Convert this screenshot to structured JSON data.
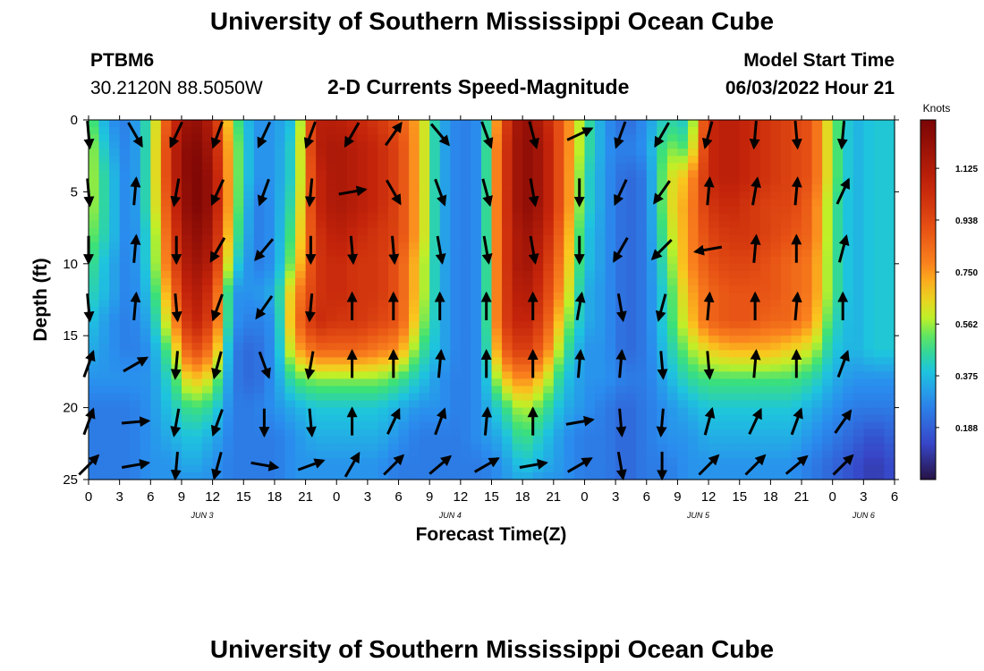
{
  "header": {
    "title": "University of Southern Mississippi Ocean Cube",
    "station": "PTBM6",
    "coords": "30.2120N  88.5050W",
    "center_title": "2-D Currents Speed-Magnitude",
    "model_label": "Model Start Time",
    "model_time": "06/03/2022 Hour 21"
  },
  "footer": {
    "title": "University of Southern Mississippi Ocean Cube"
  },
  "chart_data": {
    "type": "heatmap",
    "title": "2-D Currents Speed-Magnitude",
    "xlabel": "Forecast Time(Z)",
    "ylabel": "Depth (ft)",
    "colorbar_label": "Knots",
    "colorbar_ticks": [
      "1.125",
      "0.938",
      "0.750",
      "0.562",
      "0.375",
      "0.188"
    ],
    "colorbar_range": [
      0,
      1.3
    ],
    "x_tick_labels": [
      "0",
      "3",
      "6",
      "9",
      "12",
      "15",
      "18",
      "21",
      "0",
      "3",
      "6",
      "9",
      "12",
      "15",
      "18",
      "21",
      "0",
      "3",
      "6",
      "9",
      "12",
      "15",
      "18",
      "21",
      "0",
      "3",
      "6"
    ],
    "x_range_hours": [
      0,
      78
    ],
    "date_labels": [
      {
        "label": "JUN 3",
        "hour": 11
      },
      {
        "label": "JUN 4",
        "hour": 35
      },
      {
        "label": "JUN 5",
        "hour": 59
      },
      {
        "label": "JUN 6",
        "hour": 75
      }
    ],
    "y_ticks": [
      0,
      5,
      10,
      15,
      20,
      25
    ],
    "ylim": [
      0,
      25
    ],
    "y_inverted": true,
    "x_hours": [
      0,
      2,
      4,
      6,
      8,
      10,
      12,
      14,
      16,
      18,
      20,
      22,
      24,
      26,
      28,
      30,
      32,
      34,
      36,
      38,
      40,
      42,
      44,
      46,
      48,
      50,
      52,
      54,
      56,
      58,
      60,
      62,
      64,
      66,
      68,
      70,
      72,
      74,
      76,
      78
    ],
    "depths": [
      0,
      2,
      4,
      6,
      8,
      10,
      12,
      14,
      16,
      18,
      20,
      22,
      24,
      25
    ],
    "speed_knots": [
      [
        0.55,
        0.3,
        0.25,
        0.5,
        1.0,
        1.25,
        1.1,
        0.55,
        0.3,
        0.3,
        0.4,
        1.1,
        1.1,
        1.05,
        1.0,
        0.9,
        0.7,
        0.35,
        0.25,
        0.3,
        0.9,
        1.25,
        1.1,
        0.85,
        0.5,
        0.3,
        0.2,
        0.3,
        0.45,
        0.4,
        1.05,
        1.1,
        1.05,
        1.0,
        0.95,
        0.9,
        0.55,
        0.35,
        0.4,
        0.4
      ],
      [
        0.6,
        0.35,
        0.25,
        0.5,
        1.05,
        1.3,
        1.15,
        0.6,
        0.3,
        0.3,
        0.45,
        1.1,
        1.15,
        1.1,
        1.05,
        0.95,
        0.7,
        0.35,
        0.25,
        0.3,
        0.95,
        1.25,
        1.15,
        0.85,
        0.5,
        0.3,
        0.25,
        0.3,
        0.55,
        0.5,
        1.05,
        1.1,
        1.05,
        1.0,
        0.95,
        0.9,
        0.55,
        0.35,
        0.4,
        0.4
      ],
      [
        0.6,
        0.4,
        0.25,
        0.5,
        1.05,
        1.3,
        1.2,
        0.6,
        0.3,
        0.3,
        0.45,
        1.05,
        1.15,
        1.1,
        1.05,
        0.95,
        0.7,
        0.35,
        0.25,
        0.3,
        0.95,
        1.25,
        1.15,
        0.85,
        0.45,
        0.3,
        0.2,
        0.25,
        0.6,
        0.7,
        1.05,
        1.1,
        1.05,
        1.0,
        0.95,
        0.9,
        0.55,
        0.35,
        0.4,
        0.4
      ],
      [
        0.6,
        0.4,
        0.25,
        0.5,
        1.0,
        1.3,
        1.2,
        0.6,
        0.25,
        0.3,
        0.5,
        1.05,
        1.15,
        1.1,
        1.05,
        0.95,
        0.7,
        0.35,
        0.25,
        0.3,
        0.95,
        1.25,
        1.15,
        0.85,
        0.45,
        0.3,
        0.2,
        0.25,
        0.6,
        0.75,
        1.0,
        1.05,
        1.0,
        0.95,
        0.95,
        0.85,
        0.5,
        0.35,
        0.4,
        0.4
      ],
      [
        0.55,
        0.4,
        0.25,
        0.45,
        0.95,
        1.25,
        1.15,
        0.55,
        0.25,
        0.3,
        0.55,
        1.0,
        1.1,
        1.05,
        1.0,
        0.95,
        0.7,
        0.35,
        0.25,
        0.3,
        0.95,
        1.2,
        1.1,
        0.8,
        0.4,
        0.3,
        0.2,
        0.25,
        0.55,
        0.75,
        0.95,
        1.0,
        1.0,
        0.95,
        0.9,
        0.85,
        0.5,
        0.35,
        0.4,
        0.4
      ],
      [
        0.5,
        0.35,
        0.25,
        0.45,
        0.9,
        1.2,
        1.1,
        0.45,
        0.25,
        0.3,
        0.6,
        1.0,
        1.05,
        1.0,
        1.0,
        0.9,
        0.65,
        0.35,
        0.25,
        0.3,
        0.95,
        1.2,
        1.05,
        0.75,
        0.4,
        0.3,
        0.2,
        0.25,
        0.5,
        0.75,
        0.9,
        0.95,
        0.95,
        0.9,
        0.85,
        0.8,
        0.5,
        0.35,
        0.4,
        0.4
      ],
      [
        0.45,
        0.35,
        0.25,
        0.4,
        0.8,
        1.15,
        1.0,
        0.3,
        0.3,
        0.35,
        0.75,
        1.0,
        1.05,
        1.0,
        1.0,
        0.9,
        0.65,
        0.35,
        0.25,
        0.3,
        0.95,
        1.15,
        1.0,
        0.7,
        0.35,
        0.3,
        0.2,
        0.25,
        0.45,
        0.7,
        0.85,
        0.9,
        0.9,
        0.9,
        0.85,
        0.8,
        0.5,
        0.35,
        0.4,
        0.4
      ],
      [
        0.4,
        0.3,
        0.25,
        0.35,
        0.7,
        1.1,
        0.95,
        0.3,
        0.25,
        0.3,
        0.8,
        1.05,
        1.0,
        1.0,
        0.95,
        0.9,
        0.6,
        0.35,
        0.25,
        0.3,
        0.95,
        1.1,
        0.95,
        0.6,
        0.35,
        0.3,
        0.2,
        0.25,
        0.45,
        0.65,
        0.85,
        0.9,
        0.9,
        0.85,
        0.85,
        0.75,
        0.45,
        0.35,
        0.4,
        0.4
      ],
      [
        0.35,
        0.3,
        0.25,
        0.3,
        0.55,
        0.95,
        0.8,
        0.25,
        0.2,
        0.3,
        0.7,
        0.85,
        0.85,
        0.85,
        0.8,
        0.75,
        0.5,
        0.35,
        0.25,
        0.3,
        0.85,
        1.0,
        0.85,
        0.5,
        0.3,
        0.3,
        0.2,
        0.25,
        0.4,
        0.55,
        0.65,
        0.7,
        0.7,
        0.7,
        0.65,
        0.6,
        0.4,
        0.35,
        0.4,
        0.4
      ],
      [
        0.3,
        0.3,
        0.3,
        0.3,
        0.45,
        0.7,
        0.6,
        0.25,
        0.2,
        0.3,
        0.5,
        0.55,
        0.55,
        0.55,
        0.55,
        0.5,
        0.4,
        0.3,
        0.25,
        0.3,
        0.65,
        0.8,
        0.65,
        0.4,
        0.3,
        0.3,
        0.25,
        0.25,
        0.35,
        0.45,
        0.5,
        0.5,
        0.5,
        0.5,
        0.5,
        0.45,
        0.35,
        0.3,
        0.3,
        0.3
      ],
      [
        0.25,
        0.25,
        0.25,
        0.3,
        0.4,
        0.5,
        0.45,
        0.25,
        0.25,
        0.3,
        0.35,
        0.4,
        0.4,
        0.4,
        0.4,
        0.35,
        0.3,
        0.3,
        0.25,
        0.3,
        0.45,
        0.6,
        0.5,
        0.35,
        0.3,
        0.25,
        0.2,
        0.25,
        0.3,
        0.35,
        0.4,
        0.4,
        0.4,
        0.4,
        0.4,
        0.35,
        0.3,
        0.25,
        0.25,
        0.25
      ],
      [
        0.25,
        0.25,
        0.25,
        0.3,
        0.35,
        0.4,
        0.35,
        0.25,
        0.25,
        0.25,
        0.3,
        0.35,
        0.35,
        0.35,
        0.35,
        0.3,
        0.25,
        0.25,
        0.25,
        0.3,
        0.35,
        0.5,
        0.4,
        0.3,
        0.25,
        0.25,
        0.2,
        0.25,
        0.3,
        0.3,
        0.35,
        0.35,
        0.35,
        0.35,
        0.35,
        0.3,
        0.25,
        0.2,
        0.15,
        0.2
      ],
      [
        0.25,
        0.25,
        0.25,
        0.3,
        0.3,
        0.35,
        0.3,
        0.25,
        0.25,
        0.25,
        0.3,
        0.3,
        0.3,
        0.3,
        0.3,
        0.25,
        0.25,
        0.25,
        0.25,
        0.25,
        0.3,
        0.4,
        0.35,
        0.3,
        0.25,
        0.25,
        0.2,
        0.25,
        0.25,
        0.3,
        0.3,
        0.3,
        0.3,
        0.3,
        0.3,
        0.25,
        0.2,
        0.15,
        0.1,
        0.15
      ],
      [
        0.25,
        0.25,
        0.25,
        0.3,
        0.3,
        0.3,
        0.3,
        0.25,
        0.25,
        0.25,
        0.3,
        0.3,
        0.3,
        0.3,
        0.3,
        0.25,
        0.25,
        0.25,
        0.25,
        0.25,
        0.3,
        0.35,
        0.3,
        0.3,
        0.25,
        0.25,
        0.2,
        0.25,
        0.25,
        0.3,
        0.3,
        0.3,
        0.3,
        0.3,
        0.3,
        0.25,
        0.2,
        0.15,
        0.1,
        0.15
      ]
    ],
    "vector_hours": [
      0,
      4.5,
      8.5,
      12.5,
      17,
      21.5,
      25.5,
      29.5,
      34,
      38.5,
      43,
      47.5,
      51.5,
      55.5,
      60,
      64.5,
      68.5,
      73
    ],
    "vector_depths": [
      1,
      5,
      9,
      13,
      17,
      21,
      24
    ],
    "vector_direction_deg": [
      [
        175,
        150,
        205,
        200,
        205,
        200,
        210,
        35,
        140,
        160,
        165,
        65,
        200,
        210,
        195,
        185,
        175,
        185
      ],
      [
        175,
        5,
        190,
        205,
        200,
        185,
        80,
        150,
        160,
        165,
        170,
        180,
        205,
        215,
        5,
        10,
        5,
        25
      ],
      [
        180,
        5,
        180,
        210,
        220,
        180,
        175,
        175,
        170,
        170,
        170,
        180,
        210,
        225,
        260,
        5,
        0,
        15
      ],
      [
        175,
        5,
        175,
        200,
        215,
        185,
        0,
        0,
        0,
        0,
        0,
        10,
        170,
        195,
        5,
        0,
        5,
        0
      ],
      [
        20,
        60,
        185,
        195,
        160,
        190,
        0,
        0,
        5,
        0,
        0,
        5,
        5,
        175,
        175,
        5,
        0,
        20
      ],
      [
        20,
        85,
        190,
        200,
        180,
        175,
        0,
        25,
        20,
        5,
        0,
        80,
        175,
        185,
        15,
        25,
        20,
        35
      ],
      [
        45,
        80,
        185,
        195,
        100,
        70,
        30,
        45,
        50,
        60,
        80,
        60,
        170,
        180,
        45,
        45,
        50,
        45
      ]
    ]
  }
}
